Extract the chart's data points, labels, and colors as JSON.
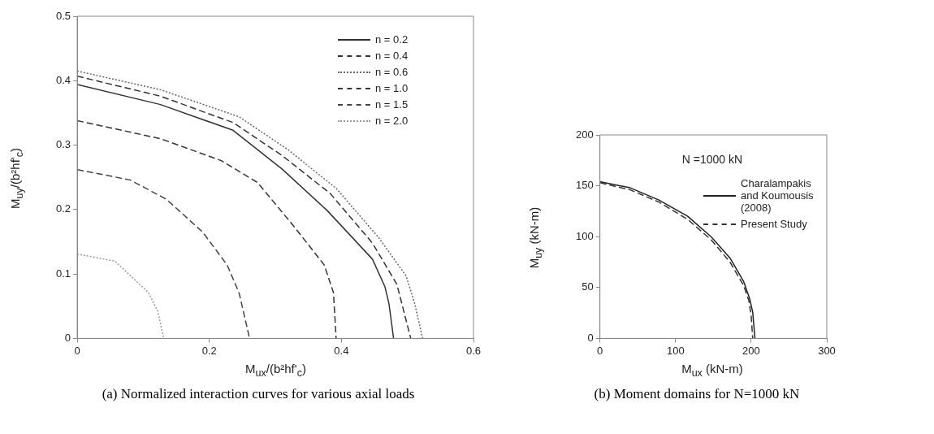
{
  "chart_data": [
    {
      "type": "line",
      "title": "(a) Normalized interaction curves for various axial loads",
      "xlabel": "M$_{ux}$/(b²hf'$_{c}$)",
      "ylabel": "M$_{uy}$/(b²hf'$_{c}$)",
      "xlim": [
        0,
        0.6
      ],
      "xticks": [
        0,
        0.2,
        0.4,
        0.6
      ],
      "ylim": [
        0,
        0.5
      ],
      "yticks": [
        0,
        0.1,
        0.2,
        0.3,
        0.4,
        0.5
      ],
      "grid": false,
      "legend": "top right",
      "marker": "none",
      "series": [
        {
          "name": "n = 0.2",
          "color": "#333333",
          "line_style": "solid",
          "x": [
            0,
            0.126,
            0.236,
            0.31,
            0.378,
            0.447,
            0.466,
            0.472,
            0.479
          ],
          "values": [
            0.394,
            0.363,
            0.323,
            0.263,
            0.199,
            0.123,
            0.08,
            0.054,
            0
          ]
        },
        {
          "name": "n = 0.4",
          "color": "#333333",
          "line_style": "dashed",
          "x": [
            0,
            0.126,
            0.236,
            0.31,
            0.383,
            0.447,
            0.484,
            0.505
          ],
          "values": [
            0.407,
            0.376,
            0.335,
            0.284,
            0.225,
            0.148,
            0.084,
            0
          ]
        },
        {
          "name": "n = 0.6",
          "color": "#666666",
          "line_style": "dotted",
          "x": [
            0,
            0.126,
            0.245,
            0.319,
            0.392,
            0.456,
            0.498,
            0.511,
            0.523
          ],
          "values": [
            0.415,
            0.386,
            0.344,
            0.293,
            0.233,
            0.157,
            0.097,
            0.054,
            0
          ]
        },
        {
          "name": "n = 1.0",
          "color": "#333333",
          "line_style": "dashed",
          "x": [
            0,
            0.126,
            0.218,
            0.273,
            0.328,
            0.374,
            0.388,
            0.392
          ],
          "values": [
            0.338,
            0.31,
            0.276,
            0.242,
            0.174,
            0.114,
            0.071,
            0
          ]
        },
        {
          "name": "n = 1.5",
          "color": "#444444",
          "line_style": "dashed",
          "x": [
            0,
            0.08,
            0.135,
            0.19,
            0.227,
            0.245,
            0.261
          ],
          "values": [
            0.262,
            0.246,
            0.216,
            0.165,
            0.114,
            0.071,
            0
          ]
        },
        {
          "name": "n = 2.0",
          "color": "#999999",
          "line_style": "dotted",
          "x": [
            0,
            0.057,
            0.108,
            0.122,
            0.131
          ],
          "values": [
            0.131,
            0.12,
            0.071,
            0.042,
            0
          ]
        }
      ]
    },
    {
      "type": "line",
      "title": "(b) Moment domains for N=1000 kN",
      "xlabel": "M$_{ux}$  (kN-m)",
      "ylabel": "M$_{uy}$  (kN-m)",
      "annotations": [
        "N =1000 kN"
      ],
      "xlim": [
        0,
        300
      ],
      "xticks": [
        0,
        100,
        200,
        300
      ],
      "ylim": [
        0,
        200
      ],
      "yticks": [
        0,
        50,
        100,
        150,
        200
      ],
      "grid": false,
      "legend": "top right",
      "marker": "none",
      "series": [
        {
          "name": "Charalampakis and Koumousis (2008)",
          "color": "#222222",
          "line_style": "solid",
          "x": [
            0,
            40,
            78,
            116,
            147,
            172,
            190,
            198,
            202,
            205
          ],
          "values": [
            154,
            148,
            136,
            120,
            100,
            79,
            56,
            39,
            26,
            0
          ]
        },
        {
          "name": "Present Study",
          "color": "#333333",
          "line_style": "dashed",
          "x": [
            0,
            40,
            78,
            116,
            147,
            172,
            190,
            197,
            200,
            202
          ],
          "values": [
            153,
            146,
            134,
            117,
            97,
            75,
            52,
            37,
            22,
            0
          ]
        }
      ]
    }
  ]
}
